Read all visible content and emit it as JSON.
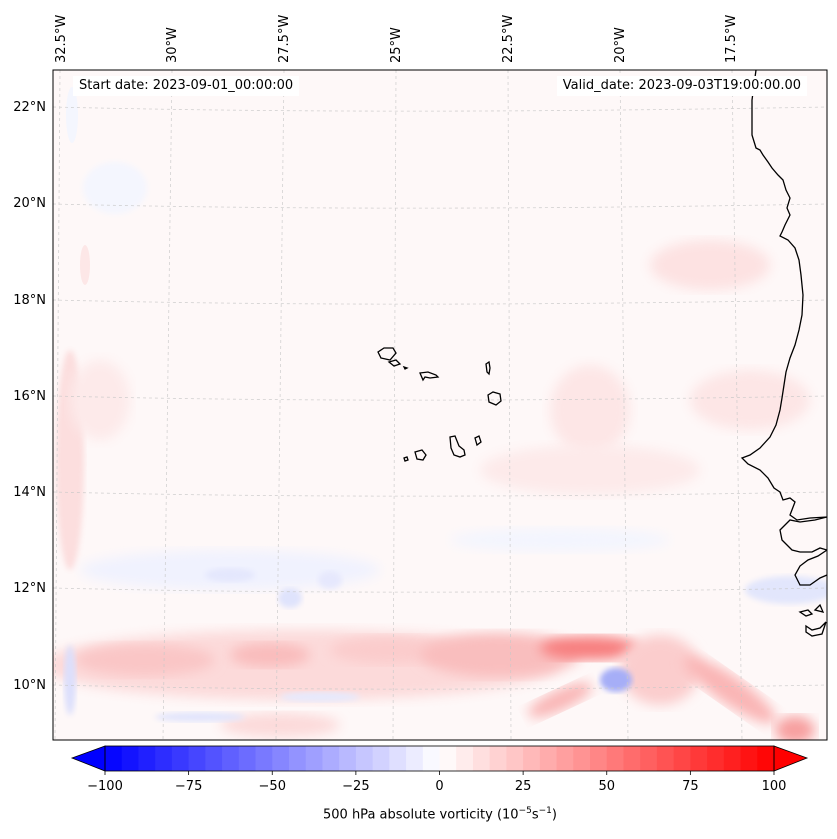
{
  "map": {
    "start_date_label": "Start date: 2023-09-01_00:00:00",
    "valid_date_label": "Valid_date: 2023-09-03T19:00:00.00",
    "longitude_labels": [
      "32.5°W",
      "30°W",
      "27.5°W",
      "25°W",
      "22.5°W",
      "20°W",
      "17.5°W"
    ],
    "latitude_labels": [
      "22°N",
      "20°N",
      "18°N",
      "16°N",
      "14°N",
      "12°N",
      "10°N"
    ],
    "extent": {
      "lon_min": -32.6,
      "lon_max": -15.2,
      "lat_min": 8.8,
      "lat_max": 22.8
    },
    "field": "500 hPa absolute vorticity",
    "features": [
      "Cape Verde islands",
      "West African coastline (Mauritania, Senegal, Gambia, Guinea-Bissau)",
      "Intense positive vorticity band near 10-11°N",
      "Negative vorticity core near 19.7°W 10.2°N"
    ]
  },
  "colorbar": {
    "label_text": "500 hPa absolute vorticity (10",
    "label_exp1": "−5",
    "label_mid": "s",
    "label_exp2": "−1",
    "label_close": ")",
    "ticks": [
      "−100",
      "−75",
      "−50",
      "−25",
      "0",
      "25",
      "50",
      "75",
      "100"
    ],
    "min": -100,
    "max": 100,
    "step": 5,
    "extend": "both",
    "cmap": "bwr",
    "colors": {
      "negative": "#0000ff",
      "neutral": "#ffffff",
      "positive": "#ff0000"
    }
  }
}
